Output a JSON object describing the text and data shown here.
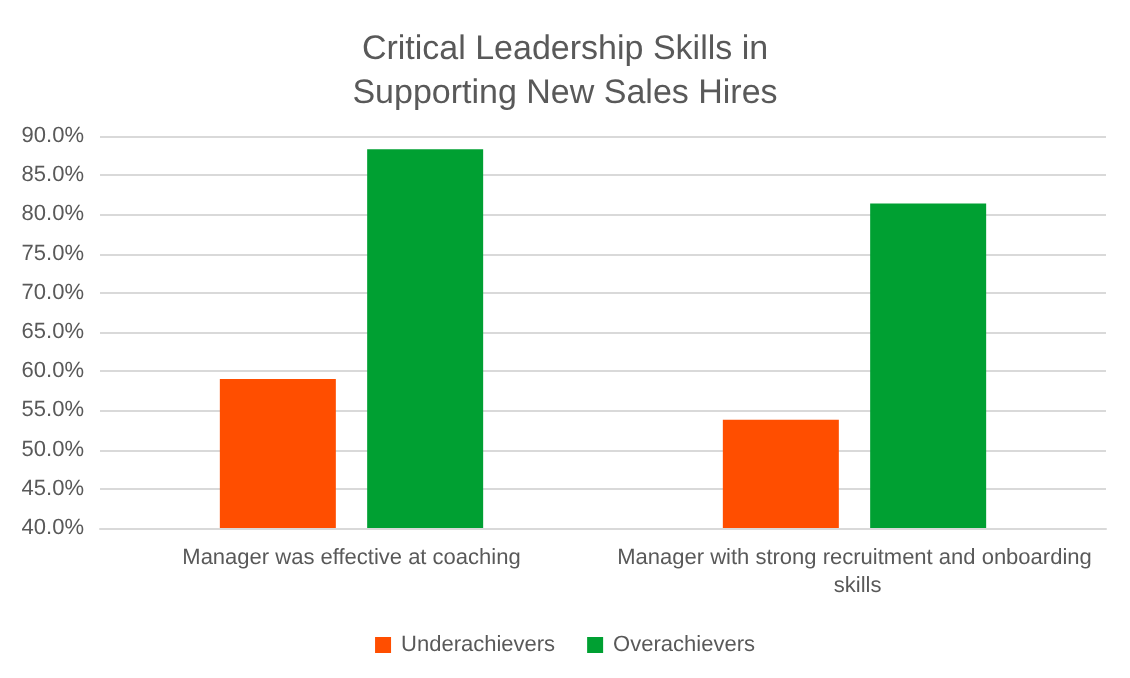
{
  "chart_data": {
    "type": "bar",
    "title": "Critical Leadership Skills in\nSupporting New Sales Hires",
    "categories": [
      "Manager was effective at coaching",
      "Manager with strong recruitment and onboarding skills"
    ],
    "series": [
      {
        "name": "Underachievers",
        "color": "#ff4e00",
        "values": [
          59.0,
          53.8
        ]
      },
      {
        "name": "Overachievers",
        "color": "#00a032",
        "values": [
          88.3,
          81.4
        ]
      }
    ],
    "ylim": [
      40,
      90
    ],
    "yticks": [
      {
        "value": 40,
        "label": "40.0%"
      },
      {
        "value": 45,
        "label": "45.0%"
      },
      {
        "value": 50,
        "label": "50.0%"
      },
      {
        "value": 55,
        "label": "55.0%"
      },
      {
        "value": 60,
        "label": "60.0%"
      },
      {
        "value": 65,
        "label": "65.0%"
      },
      {
        "value": 70,
        "label": "70.0%"
      },
      {
        "value": 75,
        "label": "75.0%"
      },
      {
        "value": 80,
        "label": "80.0%"
      },
      {
        "value": 85,
        "label": "85.0%"
      },
      {
        "value": 90,
        "label": "90.0%"
      }
    ],
    "grid": "y",
    "legend": "bottom"
  }
}
